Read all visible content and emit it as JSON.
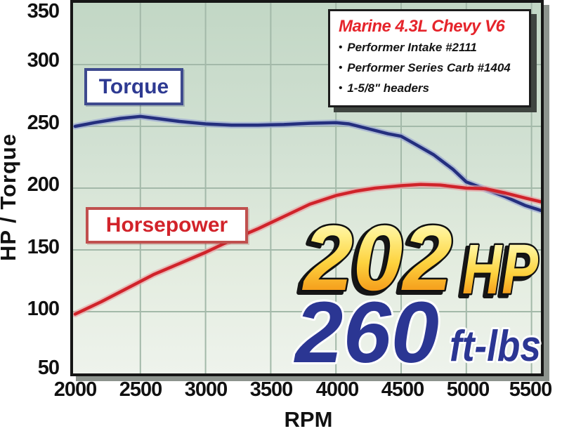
{
  "legend_box": {
    "title": "Marine 4.3L Chevy V6",
    "bullet": "•",
    "items": [
      "Performer Intake #2111",
      "Performer Series Carb #1404",
      "1-5/8\" headers"
    ]
  },
  "axes": {
    "y_title": "HP / Torque",
    "x_title": "RPM"
  },
  "curve_labels": {
    "torque": "Torque",
    "horsepower": "Horsepower"
  },
  "callouts": {
    "hp_value": "202",
    "hp_unit": "HP",
    "torque_value": "260",
    "torque_unit": "ft-lbs"
  },
  "colors": {
    "torque_line": "#242f7e",
    "torque_halo": "#96a3d2",
    "hp_line": "#d0232a",
    "hp_halo": "#e9a0a3",
    "grid": "#a3b9a9",
    "plot_bg_top": "#c2d7c5",
    "plot_bg_bottom": "#eef3ec",
    "legend_title_red": "#e5242b",
    "callout_gold_top": "#fffce3",
    "callout_gold_mid": "#fdd23e",
    "callout_gold_bottom": "#ef8c12",
    "callout_blue": "#2b3693",
    "torque_label_blue": "#2e3a92",
    "hp_label_red": "#d2232a"
  },
  "chart_data": {
    "type": "line",
    "title": "Marine 4.3L Chevy V6 dyno chart",
    "xlabel": "RPM",
    "ylabel": "HP / Torque",
    "x_ticks": [
      2000,
      2500,
      3000,
      3500,
      4000,
      4500,
      5000,
      5500
    ],
    "y_ticks": [
      50,
      100,
      150,
      200,
      250,
      300,
      350
    ],
    "xlim": [
      2000,
      5570
    ],
    "ylim": [
      50,
      350
    ],
    "grid": true,
    "legend_position": "top-right box",
    "annotations": [
      "202 HP",
      "260 ft-lbs"
    ],
    "series": [
      {
        "name": "Torque",
        "units": "ft-lbs",
        "color": "#242f7e",
        "halo": "#96a3d2",
        "peak": {
          "value": 260,
          "label": "260 ft-lbs"
        },
        "values_at_ticks": [
          250,
          258,
          252,
          251,
          253,
          242,
          205,
          184
        ],
        "points": [
          [
            2000,
            250
          ],
          [
            2150,
            253
          ],
          [
            2350,
            256.5
          ],
          [
            2500,
            258
          ],
          [
            2650,
            256
          ],
          [
            2800,
            254
          ],
          [
            3000,
            252
          ],
          [
            3200,
            251
          ],
          [
            3400,
            251
          ],
          [
            3600,
            251.5
          ],
          [
            3800,
            252.5
          ],
          [
            4000,
            253
          ],
          [
            4100,
            252
          ],
          [
            4250,
            248
          ],
          [
            4400,
            244
          ],
          [
            4500,
            242
          ],
          [
            4600,
            236
          ],
          [
            4750,
            227
          ],
          [
            4900,
            215
          ],
          [
            5000,
            205
          ],
          [
            5150,
            199
          ],
          [
            5300,
            193
          ],
          [
            5450,
            186
          ],
          [
            5570,
            182
          ]
        ]
      },
      {
        "name": "Horsepower",
        "units": "HP",
        "color": "#d0232a",
        "halo": "#e9a0a3",
        "peak": {
          "value": 202,
          "label": "202 HP"
        },
        "values_at_ticks": [
          98,
          125,
          148,
          172,
          194,
          202,
          200,
          190
        ],
        "points": [
          [
            2000,
            98
          ],
          [
            2200,
            108
          ],
          [
            2400,
            119
          ],
          [
            2600,
            130
          ],
          [
            2800,
            139
          ],
          [
            3000,
            148
          ],
          [
            3200,
            158
          ],
          [
            3400,
            167
          ],
          [
            3600,
            177
          ],
          [
            3800,
            187
          ],
          [
            4000,
            194
          ],
          [
            4150,
            197.5
          ],
          [
            4300,
            200
          ],
          [
            4500,
            202
          ],
          [
            4650,
            203
          ],
          [
            4800,
            202.5
          ],
          [
            5000,
            200
          ],
          [
            5150,
            199.5
          ],
          [
            5300,
            196
          ],
          [
            5450,
            192
          ],
          [
            5570,
            189
          ]
        ]
      }
    ]
  }
}
